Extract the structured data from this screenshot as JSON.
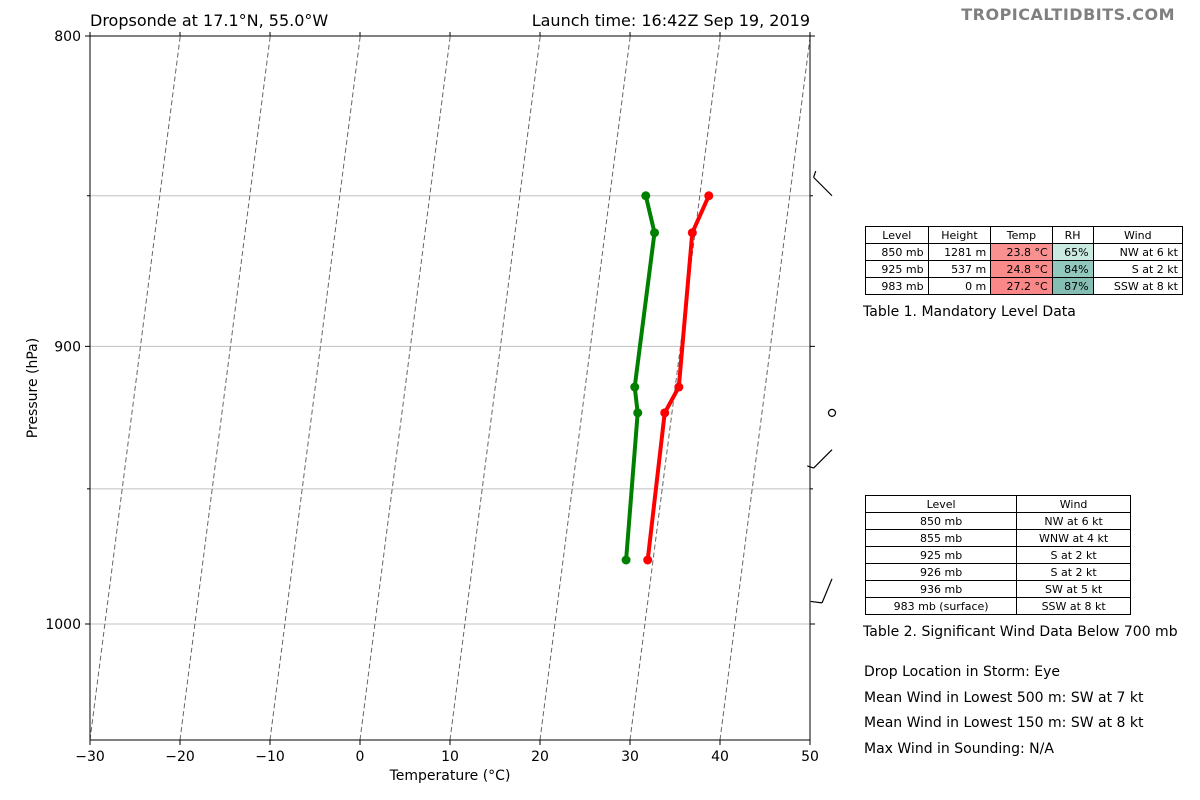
{
  "header": {
    "left_title": "Dropsonde at 17.1°N, 55.0°W",
    "right_title": "Launch time: 16:42Z Sep 19, 2019",
    "brand": "TROPICALTIDBITS.COM"
  },
  "chart_data": {
    "type": "line",
    "xlabel": "Temperature (°C)",
    "ylabel": "Pressure (hPa)",
    "xlim": [
      -30,
      50
    ],
    "ylim": [
      1045,
      800
    ],
    "y_scale": "log",
    "skewed_isotherms": true,
    "x_ticks": [
      "−30",
      "−20",
      "−10",
      "0",
      "10",
      "20",
      "30",
      "40",
      "50"
    ],
    "y_ticks": [
      "800",
      "900",
      "1000"
    ],
    "y_minor_gridlines": [
      850,
      950
    ],
    "series": [
      {
        "color": "#ff0000",
        "points": [
          [
            31.0,
            850
          ],
          [
            29.7,
            862
          ],
          [
            30.4,
            914
          ],
          [
            29.2,
            923
          ],
          [
            29.4,
            976
          ]
        ]
      },
      {
        "color": "#008000",
        "points": [
          [
            24.0,
            850
          ],
          [
            25.5,
            862
          ],
          [
            25.5,
            914
          ],
          [
            26.2,
            923
          ],
          [
            27.0,
            976
          ]
        ]
      }
    ],
    "wind_barbs": [
      {
        "pressure": 850,
        "direction": "NW",
        "kt": 6
      },
      {
        "pressure": 923,
        "direction": "calm",
        "kt": 0
      },
      {
        "pressure": 936,
        "direction": "SW",
        "kt": 5
      },
      {
        "pressure": 983,
        "direction": "SSW",
        "kt": 8
      }
    ]
  },
  "table1": {
    "headers": [
      "Level",
      "Height",
      "Temp",
      "RH",
      "Wind"
    ],
    "rows": [
      {
        "level": "850 mb",
        "height": "1281 m",
        "temp": "23.8 °C",
        "rh": "65%",
        "wind": "NW at 6 kt",
        "temp_color": "#fa9191",
        "rh_color": "#c9e9e1"
      },
      {
        "level": "925 mb",
        "height": "537 m",
        "temp": "24.8 °C",
        "rh": "84%",
        "wind": "S at 2 kt",
        "temp_color": "#fa8b8b",
        "rh_color": "#92c8be"
      },
      {
        "level": "983 mb",
        "height": "0 m",
        "temp": "27.2 °C",
        "rh": "87%",
        "wind": "SSW at 8 kt",
        "temp_color": "#fa8888",
        "rh_color": "#86bdb3"
      }
    ],
    "caption": "Table 1. Mandatory Level Data"
  },
  "table2": {
    "headers": [
      "Level",
      "Wind"
    ],
    "rows": [
      {
        "level": "850 mb",
        "wind": "NW at 6 kt"
      },
      {
        "level": "855 mb",
        "wind": "WNW at 4 kt"
      },
      {
        "level": "925 mb",
        "wind": "S at 2 kt"
      },
      {
        "level": "926 mb",
        "wind": "S at 2 kt"
      },
      {
        "level": "936 mb",
        "wind": "SW at 5 kt"
      },
      {
        "level": "983 mb (surface)",
        "wind": "SSW at 8 kt"
      }
    ],
    "caption": "Table 2. Significant Wind Data Below 700 mb"
  },
  "info": [
    "Drop Location in Storm: Eye",
    "Mean Wind in Lowest 500 m:  SW at 7 kt",
    "Mean Wind in Lowest 150 m:  SW at 8 kt",
    "Max Wind in Sounding:  N/A"
  ]
}
